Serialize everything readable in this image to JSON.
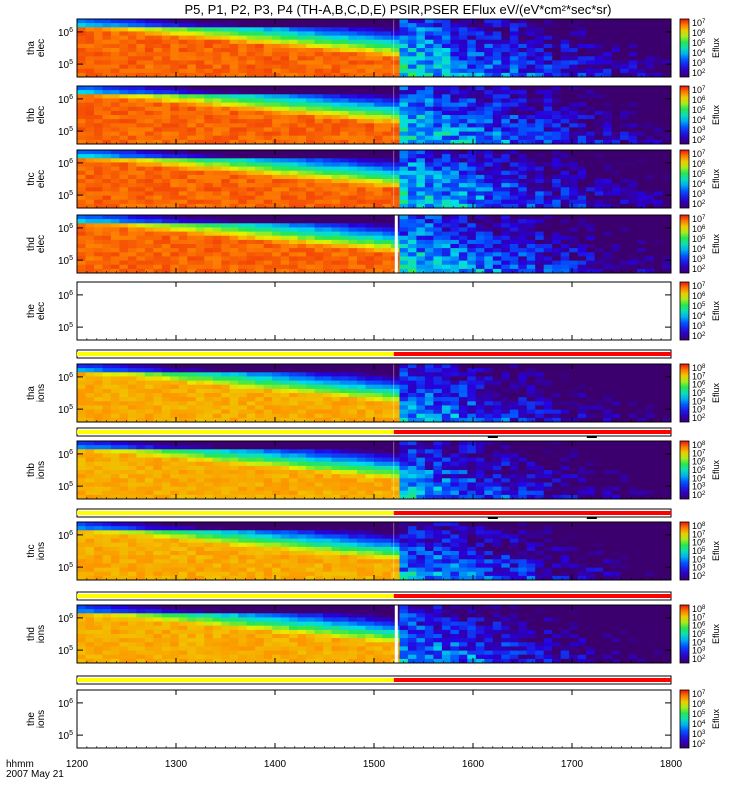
{
  "title": "P5, P1, P2, P3, P4 (TH-A,B,C,D,E) PSIR,PSER EFlux eV/(eV*cm²*sec*sr)",
  "footer": {
    "axis_name": "hhmm",
    "date": "2007 May 21"
  },
  "chart_data": {
    "type": "heatmap",
    "title": "P5, P1, P2, P3, P4 (TH-A,B,C,D,E) PSIR,PSER EFlux eV/(eV*cm²*sec*sr)",
    "x_ticks": [
      "1200",
      "1300",
      "1400",
      "1500",
      "1600",
      "1700",
      "1800"
    ],
    "xlim": [
      1200,
      1800
    ],
    "y_scale": "log",
    "panels": [
      {
        "id": "tha-elec",
        "ylabel_line1": "tha",
        "ylabel_line2": "elec",
        "yticks": [
          {
            "base": "10",
            "exp": "6",
            "v": 6
          },
          {
            "base": "10",
            "exp": "5",
            "v": 5
          }
        ],
        "ylim": [
          4.6,
          6.4
        ],
        "colorbar_label": "Eflux",
        "colorbar_ticks": [
          {
            "base": "10",
            "exp": "7"
          },
          {
            "base": "10",
            "exp": "6"
          },
          {
            "base": "10",
            "exp": "5"
          },
          {
            "base": "10",
            "exp": "4"
          },
          {
            "base": "10",
            "exp": "3"
          },
          {
            "base": "10",
            "exp": "2"
          }
        ],
        "has_data": true,
        "species": "elec",
        "transition_x": 1520,
        "gap": false
      },
      {
        "id": "thb-elec",
        "ylabel_line1": "thb",
        "ylabel_line2": "elec",
        "yticks": [
          {
            "base": "10",
            "exp": "6",
            "v": 6
          },
          {
            "base": "10",
            "exp": "5",
            "v": 5
          }
        ],
        "ylim": [
          4.6,
          6.4
        ],
        "colorbar_label": "Eflux",
        "colorbar_ticks": [
          {
            "base": "10",
            "exp": "7"
          },
          {
            "base": "10",
            "exp": "6"
          },
          {
            "base": "10",
            "exp": "5"
          },
          {
            "base": "10",
            "exp": "4"
          },
          {
            "base": "10",
            "exp": "3"
          },
          {
            "base": "10",
            "exp": "2"
          }
        ],
        "has_data": true,
        "species": "elec",
        "transition_x": 1520,
        "gap": false
      },
      {
        "id": "thc-elec",
        "ylabel_line1": "thc",
        "ylabel_line2": "elec",
        "yticks": [
          {
            "base": "10",
            "exp": "6",
            "v": 6
          },
          {
            "base": "10",
            "exp": "5",
            "v": 5
          }
        ],
        "ylim": [
          4.6,
          6.4
        ],
        "colorbar_label": "Eflux",
        "colorbar_ticks": [
          {
            "base": "10",
            "exp": "7"
          },
          {
            "base": "10",
            "exp": "6"
          },
          {
            "base": "10",
            "exp": "5"
          },
          {
            "base": "10",
            "exp": "4"
          },
          {
            "base": "10",
            "exp": "3"
          },
          {
            "base": "10",
            "exp": "2"
          }
        ],
        "has_data": true,
        "species": "elec",
        "transition_x": 1520,
        "gap": false
      },
      {
        "id": "thd-elec",
        "ylabel_line1": "thd",
        "ylabel_line2": "elec",
        "yticks": [
          {
            "base": "10",
            "exp": "6",
            "v": 6
          },
          {
            "base": "10",
            "exp": "5",
            "v": 5
          }
        ],
        "ylim": [
          4.6,
          6.4
        ],
        "colorbar_label": "Eflux",
        "colorbar_ticks": [
          {
            "base": "10",
            "exp": "7"
          },
          {
            "base": "10",
            "exp": "6"
          },
          {
            "base": "10",
            "exp": "5"
          },
          {
            "base": "10",
            "exp": "4"
          },
          {
            "base": "10",
            "exp": "3"
          },
          {
            "base": "10",
            "exp": "2"
          }
        ],
        "has_data": true,
        "species": "elec",
        "transition_x": 1520,
        "gap": true
      },
      {
        "id": "the-elec",
        "ylabel_line1": "the",
        "ylabel_line2": "elec",
        "yticks": [
          {
            "base": "10",
            "exp": "6",
            "v": 6
          },
          {
            "base": "10",
            "exp": "5",
            "v": 5
          }
        ],
        "ylim": [
          4.6,
          6.4
        ],
        "colorbar_label": "Eflux",
        "colorbar_ticks": [
          {
            "base": "10",
            "exp": "7"
          },
          {
            "base": "10",
            "exp": "6"
          },
          {
            "base": "10",
            "exp": "5"
          },
          {
            "base": "10",
            "exp": "4"
          },
          {
            "base": "10",
            "exp": "3"
          },
          {
            "base": "10",
            "exp": "2"
          }
        ],
        "has_data": false,
        "species": "elec",
        "transition_x": 1520,
        "gap": false
      },
      {
        "id": "tha-ions",
        "ylabel_line1": "tha",
        "ylabel_line2": "ions",
        "yticks": [
          {
            "base": "10",
            "exp": "6",
            "v": 6
          },
          {
            "base": "10",
            "exp": "5",
            "v": 5
          }
        ],
        "ylim": [
          4.6,
          6.4
        ],
        "colorbar_label": "Eflux",
        "colorbar_ticks": [
          {
            "base": "10",
            "exp": "8"
          },
          {
            "base": "10",
            "exp": "7"
          },
          {
            "base": "10",
            "exp": "6"
          },
          {
            "base": "10",
            "exp": "5"
          },
          {
            "base": "10",
            "exp": "4"
          },
          {
            "base": "10",
            "exp": "3"
          },
          {
            "base": "10",
            "exp": "2"
          }
        ],
        "has_data": true,
        "species": "ions",
        "transition_x": 1520,
        "gap": false
      },
      {
        "id": "thb-ions",
        "ylabel_line1": "thb",
        "ylabel_line2": "ions",
        "yticks": [
          {
            "base": "10",
            "exp": "6",
            "v": 6
          },
          {
            "base": "10",
            "exp": "5",
            "v": 5
          }
        ],
        "ylim": [
          4.6,
          6.4
        ],
        "colorbar_label": "Eflux",
        "colorbar_ticks": [
          {
            "base": "10",
            "exp": "8"
          },
          {
            "base": "10",
            "exp": "7"
          },
          {
            "base": "10",
            "exp": "6"
          },
          {
            "base": "10",
            "exp": "5"
          },
          {
            "base": "10",
            "exp": "4"
          },
          {
            "base": "10",
            "exp": "3"
          },
          {
            "base": "10",
            "exp": "2"
          }
        ],
        "has_data": true,
        "species": "ions",
        "transition_x": 1520,
        "gap": false
      },
      {
        "id": "thc-ions",
        "ylabel_line1": "thc",
        "ylabel_line2": "ions",
        "yticks": [
          {
            "base": "10",
            "exp": "6",
            "v": 6
          },
          {
            "base": "10",
            "exp": "5",
            "v": 5
          }
        ],
        "ylim": [
          4.6,
          6.4
        ],
        "colorbar_label": "Eflux",
        "colorbar_ticks": [
          {
            "base": "10",
            "exp": "8"
          },
          {
            "base": "10",
            "exp": "7"
          },
          {
            "base": "10",
            "exp": "6"
          },
          {
            "base": "10",
            "exp": "5"
          },
          {
            "base": "10",
            "exp": "4"
          },
          {
            "base": "10",
            "exp": "3"
          },
          {
            "base": "10",
            "exp": "2"
          }
        ],
        "has_data": true,
        "species": "ions",
        "transition_x": 1520,
        "gap": false
      },
      {
        "id": "thd-ions",
        "ylabel_line1": "thd",
        "ylabel_line2": "ions",
        "yticks": [
          {
            "base": "10",
            "exp": "6",
            "v": 6
          },
          {
            "base": "10",
            "exp": "5",
            "v": 5
          }
        ],
        "ylim": [
          4.6,
          6.4
        ],
        "colorbar_label": "Eflux",
        "colorbar_ticks": [
          {
            "base": "10",
            "exp": "8"
          },
          {
            "base": "10",
            "exp": "7"
          },
          {
            "base": "10",
            "exp": "6"
          },
          {
            "base": "10",
            "exp": "5"
          },
          {
            "base": "10",
            "exp": "4"
          },
          {
            "base": "10",
            "exp": "3"
          },
          {
            "base": "10",
            "exp": "2"
          }
        ],
        "has_data": true,
        "species": "ions",
        "transition_x": 1520,
        "gap": true
      },
      {
        "id": "the-ions",
        "ylabel_line1": "the",
        "ylabel_line2": "ions",
        "yticks": [
          {
            "base": "10",
            "exp": "6",
            "v": 6
          },
          {
            "base": "10",
            "exp": "5",
            "v": 5
          }
        ],
        "ylim": [
          4.6,
          6.4
        ],
        "colorbar_label": "Eflux",
        "colorbar_ticks": [
          {
            "base": "10",
            "exp": "7"
          },
          {
            "base": "10",
            "exp": "6"
          },
          {
            "base": "10",
            "exp": "5"
          },
          {
            "base": "10",
            "exp": "4"
          },
          {
            "base": "10",
            "exp": "3"
          },
          {
            "base": "10",
            "exp": "2"
          }
        ],
        "has_data": false,
        "species": "ions",
        "transition_x": 1520,
        "gap": false
      }
    ],
    "mode_bars": [
      {
        "after_panel": "the-elec",
        "segments": [
          {
            "from": 1200,
            "to": 1520,
            "color": "#ffff00"
          },
          {
            "from": 1520,
            "to": 1800,
            "color": "#ff0000"
          }
        ],
        "markers": []
      },
      {
        "after_panel": "tha-ions",
        "segments": [
          {
            "from": 1200,
            "to": 1520,
            "color": "#ffff00"
          },
          {
            "from": 1520,
            "to": 1800,
            "color": "#ff0000"
          }
        ],
        "markers": [
          1620,
          1720
        ]
      },
      {
        "after_panel": "thb-ions",
        "segments": [
          {
            "from": 1200,
            "to": 1520,
            "color": "#ffff00"
          },
          {
            "from": 1520,
            "to": 1800,
            "color": "#ff0000"
          }
        ],
        "markers": [
          1620,
          1720
        ]
      },
      {
        "after_panel": "thc-ions",
        "segments": [
          {
            "from": 1200,
            "to": 1520,
            "color": "#ffff00"
          },
          {
            "from": 1520,
            "to": 1800,
            "color": "#ff0000"
          }
        ],
        "markers": []
      },
      {
        "after_panel": "thd-ions",
        "segments": [
          {
            "from": 1200,
            "to": 1520,
            "color": "#ffff00"
          },
          {
            "from": 1520,
            "to": 1800,
            "color": "#ff0000"
          }
        ],
        "markers": []
      }
    ]
  }
}
